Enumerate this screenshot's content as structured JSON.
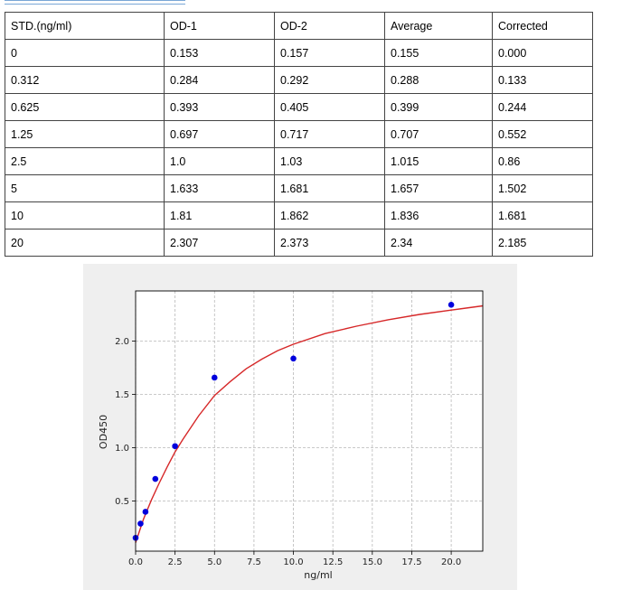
{
  "table": {
    "headers": [
      "STD.(ng/ml)",
      "OD-1",
      "OD-2",
      "Average",
      "Corrected"
    ],
    "rows": [
      [
        "0",
        "0.153",
        "0.157",
        "0.155",
        "0.000"
      ],
      [
        "0.312",
        "0.284",
        "0.292",
        "0.288",
        "0.133"
      ],
      [
        "0.625",
        "0.393",
        "0.405",
        "0.399",
        "0.244"
      ],
      [
        "1.25",
        "0.697",
        "0.717",
        "0.707",
        "0.552"
      ],
      [
        "2.5",
        "1.0",
        "1.03",
        "1.015",
        "0.86"
      ],
      [
        "5",
        "1.633",
        "1.681",
        "1.657",
        "1.502"
      ],
      [
        "10",
        "1.81",
        "1.862",
        "1.836",
        "1.681"
      ],
      [
        "20",
        "2.307",
        "2.373",
        "2.34",
        "2.185"
      ]
    ]
  },
  "chart_data": {
    "type": "scatter",
    "xlabel": "ng/ml",
    "ylabel": "OD450",
    "xlim": [
      0,
      22
    ],
    "ylim": [
      0.03,
      2.47
    ],
    "xticks": [
      "0.0",
      "2.5",
      "5.0",
      "7.5",
      "10.0",
      "12.5",
      "15.0",
      "17.5",
      "20.0"
    ],
    "yticks": [
      "0.5",
      "1.0",
      "1.5",
      "2.0"
    ],
    "grid": true,
    "points": {
      "x": [
        0,
        0.312,
        0.625,
        1.25,
        2.5,
        5,
        10,
        20
      ],
      "y": [
        0.155,
        0.288,
        0.399,
        0.707,
        1.015,
        1.657,
        1.836,
        2.34
      ],
      "color": "#0000dd"
    },
    "fit_curve": {
      "color": "#d62728",
      "x": [
        0,
        0.5,
        1,
        1.5,
        2,
        2.5,
        3,
        4,
        5,
        6,
        7,
        8,
        9,
        10,
        12,
        14,
        16,
        18,
        20,
        22
      ],
      "y": [
        0.11,
        0.33,
        0.51,
        0.67,
        0.82,
        0.96,
        1.08,
        1.3,
        1.49,
        1.62,
        1.74,
        1.83,
        1.91,
        1.97,
        2.07,
        2.14,
        2.2,
        2.25,
        2.29,
        2.33
      ]
    }
  }
}
